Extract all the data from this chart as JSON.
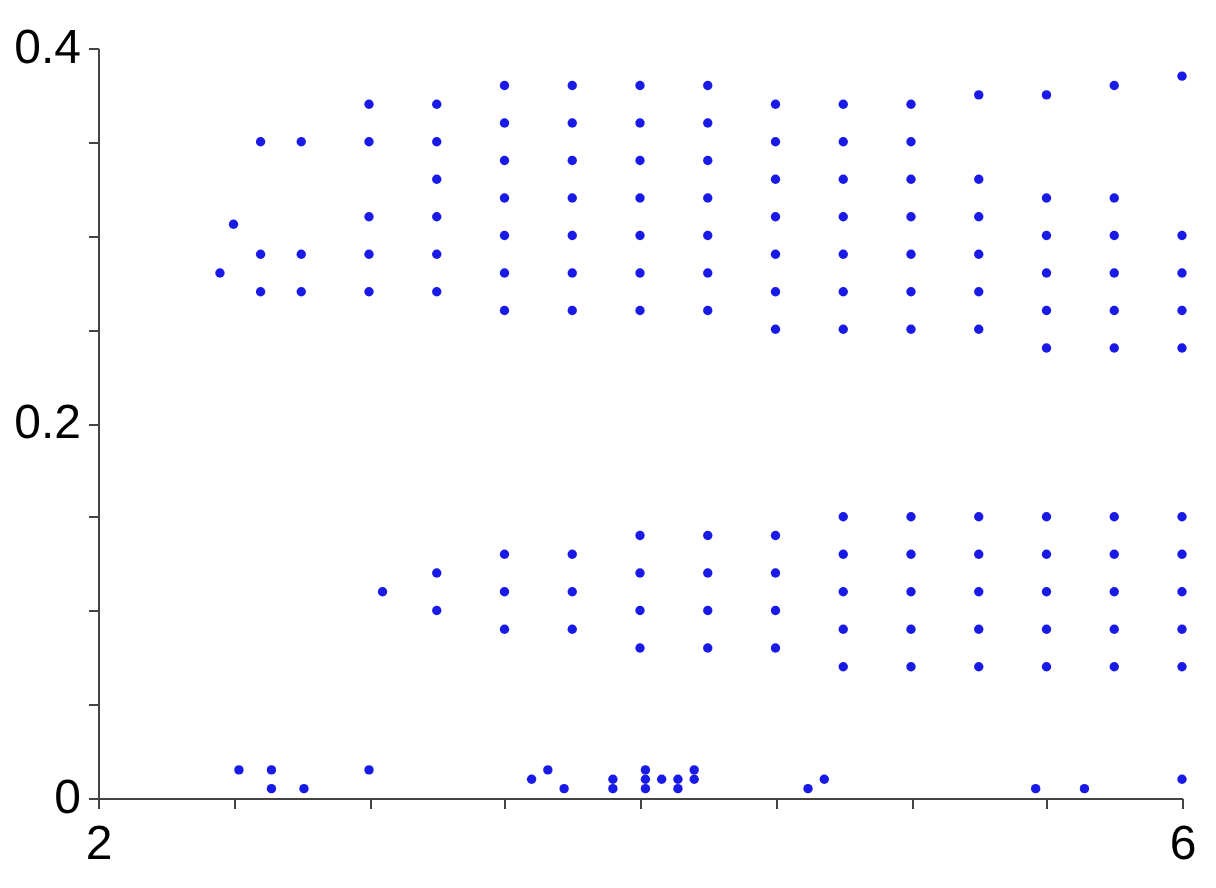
{
  "chart_data": {
    "type": "scatter",
    "marker": "circle",
    "xlim": [
      2,
      6
    ],
    "ylim": [
      0,
      0.4
    ],
    "xticks": [
      2,
      {
        "value": 2.5,
        "label": null
      },
      {
        "value": 3,
        "label": null
      },
      {
        "value": 3.5,
        "label": null
      },
      {
        "value": 4,
        "label": null
      },
      {
        "value": 4.5,
        "label": null
      },
      {
        "value": 5,
        "label": null
      },
      {
        "value": 5.5,
        "label": null
      },
      6
    ],
    "yticks": [
      0,
      {
        "value": 0.05,
        "label": null
      },
      {
        "value": 0.1,
        "label": null
      },
      {
        "value": 0.15,
        "label": null
      },
      0.2,
      {
        "value": 0.25,
        "label": null
      },
      {
        "value": 0.3,
        "label": null
      },
      {
        "value": 0.35,
        "label": null
      },
      0.4
    ],
    "series": [
      {
        "color": "#1a1ae6",
        "x": [
          2.45,
          2.5,
          2.6,
          2.6,
          2.6,
          2.75,
          2.75,
          2.75,
          3,
          3,
          3,
          3,
          3,
          3.25,
          3.25,
          3.25,
          3.25,
          3.25,
          3.25,
          3.5,
          3.5,
          3.5,
          3.5,
          3.5,
          3.5,
          3.5,
          3.75,
          3.75,
          3.75,
          3.75,
          3.75,
          3.75,
          3.75,
          4,
          4,
          4,
          4,
          4,
          4,
          4,
          4.25,
          4.25,
          4.25,
          4.25,
          4.25,
          4.25,
          4.25,
          4.5,
          4.5,
          4.5,
          4.5,
          4.5,
          4.5,
          4.5,
          4.75,
          4.75,
          4.75,
          4.75,
          4.75,
          4.75,
          4.75,
          5,
          5,
          5,
          5,
          5,
          5,
          5,
          5.25,
          5.25,
          5.25,
          5.25,
          5.25,
          5.25,
          5.5,
          5.5,
          5.5,
          5.5,
          5.5,
          5.5,
          5.75,
          5.75,
          5.75,
          5.75,
          5.75,
          5.75,
          6,
          6,
          6,
          6,
          6
        ],
        "values": [
          0.28,
          0.306,
          0.35,
          0.27,
          0.29,
          0.35,
          0.27,
          0.29,
          0.35,
          0.37,
          0.27,
          0.29,
          0.31,
          0.27,
          0.29,
          0.31,
          0.33,
          0.35,
          0.37,
          0.26,
          0.28,
          0.3,
          0.32,
          0.34,
          0.36,
          0.38,
          0.26,
          0.28,
          0.3,
          0.32,
          0.34,
          0.36,
          0.38,
          0.26,
          0.28,
          0.3,
          0.32,
          0.34,
          0.36,
          0.38,
          0.26,
          0.28,
          0.3,
          0.32,
          0.34,
          0.36,
          0.38,
          0.25,
          0.27,
          0.29,
          0.31,
          0.33,
          0.35,
          0.37,
          0.25,
          0.27,
          0.29,
          0.31,
          0.33,
          0.35,
          0.37,
          0.25,
          0.27,
          0.29,
          0.31,
          0.33,
          0.35,
          0.37,
          0.375,
          0.25,
          0.27,
          0.29,
          0.31,
          0.33,
          0.375,
          0.24,
          0.26,
          0.28,
          0.3,
          0.32,
          0.38,
          0.24,
          0.26,
          0.28,
          0.3,
          0.32,
          0.385,
          0.24,
          0.26,
          0.28,
          0.3
        ]
      },
      {
        "color": "#1a1ae6",
        "x": [
          3.05,
          3.25,
          3.25,
          3.5,
          3.5,
          3.5,
          3.75,
          3.75,
          3.75,
          4,
          4,
          4,
          4,
          4.25,
          4.25,
          4.25,
          4.25,
          4.5,
          4.5,
          4.5,
          4.5,
          4.75,
          4.75,
          4.75,
          4.75,
          4.75,
          5,
          5,
          5,
          5,
          5,
          5.25,
          5.25,
          5.25,
          5.25,
          5.25,
          5.5,
          5.5,
          5.5,
          5.5,
          5.5,
          5.75,
          5.75,
          5.75,
          5.75,
          5.75,
          6,
          6,
          6,
          6,
          6
        ],
        "values": [
          0.11,
          0.1,
          0.12,
          0.09,
          0.11,
          0.13,
          0.09,
          0.11,
          0.13,
          0.08,
          0.1,
          0.12,
          0.14,
          0.08,
          0.1,
          0.12,
          0.14,
          0.08,
          0.1,
          0.12,
          0.14,
          0.07,
          0.09,
          0.11,
          0.13,
          0.15,
          0.07,
          0.09,
          0.11,
          0.13,
          0.15,
          0.07,
          0.09,
          0.11,
          0.13,
          0.15,
          0.07,
          0.09,
          0.11,
          0.13,
          0.15,
          0.07,
          0.09,
          0.11,
          0.13,
          0.15,
          0.07,
          0.09,
          0.11,
          0.13,
          0.15
        ]
      },
      {
        "color": "#1a1ae6",
        "x": [
          2.52,
          2.64,
          2.64,
          2.76,
          3,
          3.6,
          3.66,
          3.72,
          3.9,
          3.9,
          4.02,
          4.02,
          4.02,
          4.08,
          4.14,
          4.14,
          4.2,
          4.2,
          4.62,
          4.68,
          5.46,
          5.64,
          6
        ],
        "values": [
          0.015,
          0.015,
          0.005,
          0.005,
          0.015,
          0.01,
          0.015,
          0.005,
          0.01,
          0.005,
          0.015,
          0.01,
          0.005,
          0.01,
          0.01,
          0.005,
          0.015,
          0.01,
          0.005,
          0.01,
          0.005,
          0.005,
          0.01
        ]
      }
    ]
  }
}
